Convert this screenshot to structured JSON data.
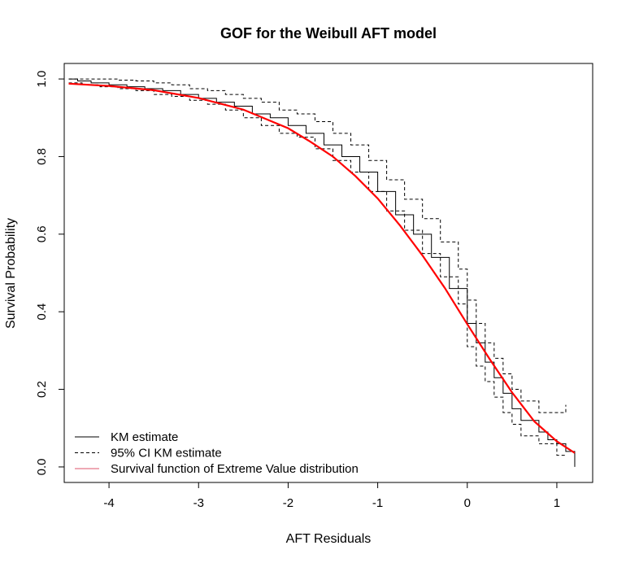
{
  "chart_data": {
    "type": "line",
    "title": "GOF for the Weibull AFT model",
    "xlabel": "AFT Residuals",
    "ylabel": "Survival Probability",
    "xlim": [
      -4.5,
      1.4
    ],
    "ylim": [
      -0.04,
      1.04
    ],
    "x_ticks": [
      -4,
      -3,
      -2,
      -1,
      0,
      1
    ],
    "y_ticks": [
      0.0,
      0.2,
      0.4,
      0.6,
      0.8,
      1.0
    ],
    "x_tick_labels": [
      "-4",
      "-3",
      "-2",
      "-1",
      "0",
      "1"
    ],
    "y_tick_labels": [
      "0.0",
      "0.2",
      "0.4",
      "0.6",
      "0.8",
      "1.0"
    ],
    "grid": false,
    "legend_position": "bottom-left",
    "series": [
      {
        "name": "KM estimate",
        "style": "step",
        "color": "#000000",
        "dash": "solid",
        "x": [
          -4.45,
          -4.35,
          -4.2,
          -4.0,
          -3.8,
          -3.6,
          -3.4,
          -3.2,
          -3.0,
          -2.8,
          -2.6,
          -2.4,
          -2.2,
          -2.0,
          -1.8,
          -1.6,
          -1.4,
          -1.2,
          -1.0,
          -0.8,
          -0.6,
          -0.4,
          -0.2,
          0.0,
          0.1,
          0.2,
          0.3,
          0.4,
          0.5,
          0.6,
          0.8,
          0.9,
          1.0,
          1.1,
          1.2
        ],
        "y": [
          1.0,
          0.995,
          0.99,
          0.985,
          0.98,
          0.975,
          0.97,
          0.96,
          0.95,
          0.94,
          0.93,
          0.91,
          0.9,
          0.88,
          0.86,
          0.83,
          0.8,
          0.76,
          0.71,
          0.65,
          0.6,
          0.54,
          0.46,
          0.37,
          0.32,
          0.27,
          0.23,
          0.19,
          0.15,
          0.12,
          0.09,
          0.07,
          0.06,
          0.04,
          0.0
        ]
      },
      {
        "name": "95% CI KM estimate",
        "style": "step",
        "color": "#000000",
        "dash": "dashed",
        "x": [
          -4.45,
          -4.3,
          -4.1,
          -3.9,
          -3.7,
          -3.5,
          -3.3,
          -3.1,
          -2.9,
          -2.7,
          -2.5,
          -2.3,
          -2.1,
          -1.9,
          -1.7,
          -1.5,
          -1.3,
          -1.1,
          -0.9,
          -0.7,
          -0.5,
          -0.3,
          -0.1,
          0.0,
          0.1,
          0.2,
          0.3,
          0.4,
          0.5,
          0.6,
          0.8,
          1.0,
          1.1
        ],
        "y": [
          1.0,
          1.0,
          1.0,
          0.997,
          0.995,
          0.99,
          0.985,
          0.975,
          0.97,
          0.96,
          0.95,
          0.94,
          0.92,
          0.91,
          0.89,
          0.86,
          0.83,
          0.79,
          0.74,
          0.69,
          0.64,
          0.58,
          0.51,
          0.43,
          0.37,
          0.32,
          0.28,
          0.24,
          0.2,
          0.17,
          0.14,
          0.14,
          0.16
        ]
      },
      {
        "name": "",
        "style": "step",
        "color": "#000000",
        "dash": "dashed",
        "x": [
          -4.45,
          -4.3,
          -4.1,
          -3.9,
          -3.7,
          -3.5,
          -3.3,
          -3.1,
          -2.9,
          -2.7,
          -2.5,
          -2.3,
          -2.1,
          -1.9,
          -1.7,
          -1.5,
          -1.3,
          -1.1,
          -0.9,
          -0.7,
          -0.5,
          -0.3,
          -0.1,
          0.0,
          0.1,
          0.2,
          0.3,
          0.4,
          0.5,
          0.6,
          0.8,
          1.0,
          1.1
        ],
        "y": [
          0.99,
          0.985,
          0.98,
          0.975,
          0.97,
          0.96,
          0.955,
          0.945,
          0.935,
          0.92,
          0.9,
          0.88,
          0.86,
          0.85,
          0.82,
          0.79,
          0.76,
          0.71,
          0.66,
          0.61,
          0.55,
          0.49,
          0.42,
          0.31,
          0.26,
          0.22,
          0.18,
          0.14,
          0.11,
          0.08,
          0.06,
          0.03,
          0.03
        ]
      },
      {
        "name": "Survival function of Extreme Value distribution",
        "style": "line",
        "color": "#ff0000",
        "dash": "solid",
        "x": [
          -4.45,
          -4.0,
          -3.5,
          -3.0,
          -2.5,
          -2.0,
          -1.75,
          -1.5,
          -1.25,
          -1.0,
          -0.75,
          -0.5,
          -0.25,
          0.0,
          0.25,
          0.5,
          0.75,
          1.0,
          1.2
        ],
        "y": [
          0.988,
          0.982,
          0.971,
          0.951,
          0.921,
          0.873,
          0.838,
          0.8,
          0.75,
          0.692,
          0.622,
          0.545,
          0.461,
          0.368,
          0.278,
          0.192,
          0.117,
          0.066,
          0.036
        ]
      }
    ],
    "legend": [
      {
        "label": "KM estimate",
        "color": "#000000",
        "dash": "solid"
      },
      {
        "label": "95% CI KM estimate",
        "color": "#000000",
        "dash": "dashed"
      },
      {
        "label": "Survival function of Extreme Value distribution",
        "color": "#ff0000",
        "dash": "solid"
      }
    ]
  }
}
